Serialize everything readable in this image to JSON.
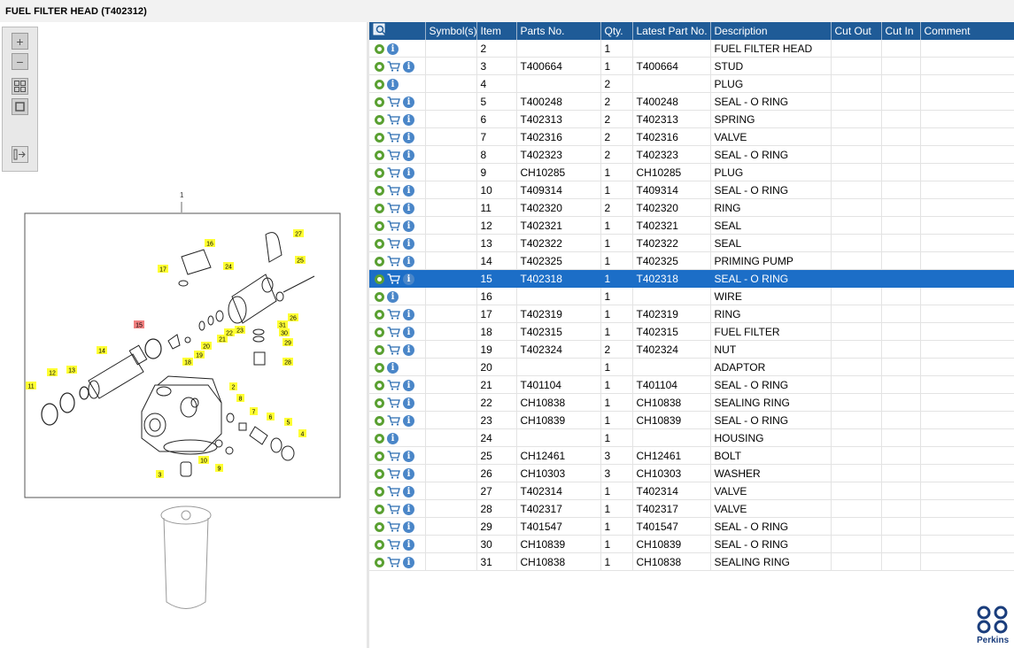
{
  "title": "FUEL FILTER HEAD (T402312)",
  "table": {
    "columns": [
      "",
      "Symbol(s)",
      "Item",
      "Parts No.",
      "Qty.",
      "Latest Part No.",
      "Description",
      "Cut Out",
      "Cut In",
      "Comment"
    ],
    "rows": [
      {
        "cart": false,
        "item": "2",
        "part": "",
        "qty": "1",
        "latest": "",
        "desc": "FUEL FILTER HEAD"
      },
      {
        "cart": true,
        "item": "3",
        "part": "T400664",
        "qty": "1",
        "latest": "T400664",
        "desc": "STUD"
      },
      {
        "cart": false,
        "item": "4",
        "part": "",
        "qty": "2",
        "latest": "",
        "desc": "PLUG"
      },
      {
        "cart": true,
        "item": "5",
        "part": "T400248",
        "qty": "2",
        "latest": "T400248",
        "desc": "SEAL - O RING"
      },
      {
        "cart": true,
        "item": "6",
        "part": "T402313",
        "qty": "2",
        "latest": "T402313",
        "desc": "SPRING"
      },
      {
        "cart": true,
        "item": "7",
        "part": "T402316",
        "qty": "2",
        "latest": "T402316",
        "desc": "VALVE"
      },
      {
        "cart": true,
        "item": "8",
        "part": "T402323",
        "qty": "2",
        "latest": "T402323",
        "desc": "SEAL - O RING"
      },
      {
        "cart": true,
        "item": "9",
        "part": "CH10285",
        "qty": "1",
        "latest": "CH10285",
        "desc": "PLUG"
      },
      {
        "cart": true,
        "item": "10",
        "part": "T409314",
        "qty": "1",
        "latest": "T409314",
        "desc": "SEAL - O RING"
      },
      {
        "cart": true,
        "item": "11",
        "part": "T402320",
        "qty": "2",
        "latest": "T402320",
        "desc": "RING"
      },
      {
        "cart": true,
        "item": "12",
        "part": "T402321",
        "qty": "1",
        "latest": "T402321",
        "desc": "SEAL"
      },
      {
        "cart": true,
        "item": "13",
        "part": "T402322",
        "qty": "1",
        "latest": "T402322",
        "desc": "SEAL"
      },
      {
        "cart": true,
        "item": "14",
        "part": "T402325",
        "qty": "1",
        "latest": "T402325",
        "desc": "PRIMING PUMP"
      },
      {
        "cart": true,
        "selected": true,
        "item": "15",
        "part": "T402318",
        "qty": "1",
        "latest": "T402318",
        "desc": "SEAL - O RING"
      },
      {
        "cart": false,
        "item": "16",
        "part": "",
        "qty": "1",
        "latest": "",
        "desc": "WIRE"
      },
      {
        "cart": true,
        "item": "17",
        "part": "T402319",
        "qty": "1",
        "latest": "T402319",
        "desc": "RING"
      },
      {
        "cart": true,
        "item": "18",
        "part": "T402315",
        "qty": "1",
        "latest": "T402315",
        "desc": "FUEL FILTER"
      },
      {
        "cart": true,
        "item": "19",
        "part": "T402324",
        "qty": "2",
        "latest": "T402324",
        "desc": "NUT"
      },
      {
        "cart": false,
        "item": "20",
        "part": "",
        "qty": "1",
        "latest": "",
        "desc": "ADAPTOR"
      },
      {
        "cart": true,
        "item": "21",
        "part": "T401104",
        "qty": "1",
        "latest": "T401104",
        "desc": "SEAL - O RING"
      },
      {
        "cart": true,
        "item": "22",
        "part": "CH10838",
        "qty": "1",
        "latest": "CH10838",
        "desc": "SEALING RING"
      },
      {
        "cart": true,
        "item": "23",
        "part": "CH10839",
        "qty": "1",
        "latest": "CH10839",
        "desc": "SEAL - O RING"
      },
      {
        "cart": false,
        "item": "24",
        "part": "",
        "qty": "1",
        "latest": "",
        "desc": "HOUSING"
      },
      {
        "cart": true,
        "item": "25",
        "part": "CH12461",
        "qty": "3",
        "latest": "CH12461",
        "desc": "BOLT"
      },
      {
        "cart": true,
        "item": "26",
        "part": "CH10303",
        "qty": "3",
        "latest": "CH10303",
        "desc": "WASHER"
      },
      {
        "cart": true,
        "item": "27",
        "part": "T402314",
        "qty": "1",
        "latest": "T402314",
        "desc": "VALVE"
      },
      {
        "cart": true,
        "item": "28",
        "part": "T402317",
        "qty": "1",
        "latest": "T402317",
        "desc": "VALVE"
      },
      {
        "cart": true,
        "item": "29",
        "part": "T401547",
        "qty": "1",
        "latest": "T401547",
        "desc": "SEAL - O RING"
      },
      {
        "cart": true,
        "item": "30",
        "part": "CH10839",
        "qty": "1",
        "latest": "CH10839",
        "desc": "SEAL - O RING"
      },
      {
        "cart": true,
        "item": "31",
        "part": "CH10838",
        "qty": "1",
        "latest": "CH10838",
        "desc": "SEALING RING"
      }
    ]
  },
  "drawing": {
    "view_number": "1",
    "callouts": [
      "2",
      "3",
      "4",
      "5",
      "6",
      "7",
      "8",
      "9",
      "10",
      "11",
      "12",
      "13",
      "14",
      "15",
      "16",
      "17",
      "18",
      "19",
      "20",
      "21",
      "22",
      "23",
      "24",
      "25",
      "26",
      "27",
      "28",
      "29",
      "30",
      "31"
    ],
    "highlighted_callout": "15"
  },
  "toolbar": [
    "zoom-in-icon",
    "zoom-out-icon",
    "fit-view-icon",
    "actual-size-icon",
    "toggle-panel-icon"
  ],
  "brand": {
    "name": "Perkins",
    "color": "#1a3d7c"
  },
  "colors": {
    "header": "#1f5b97",
    "selected": "#1c6ec7",
    "callout": "#ffff33",
    "callout_highlight": "#f08080"
  }
}
